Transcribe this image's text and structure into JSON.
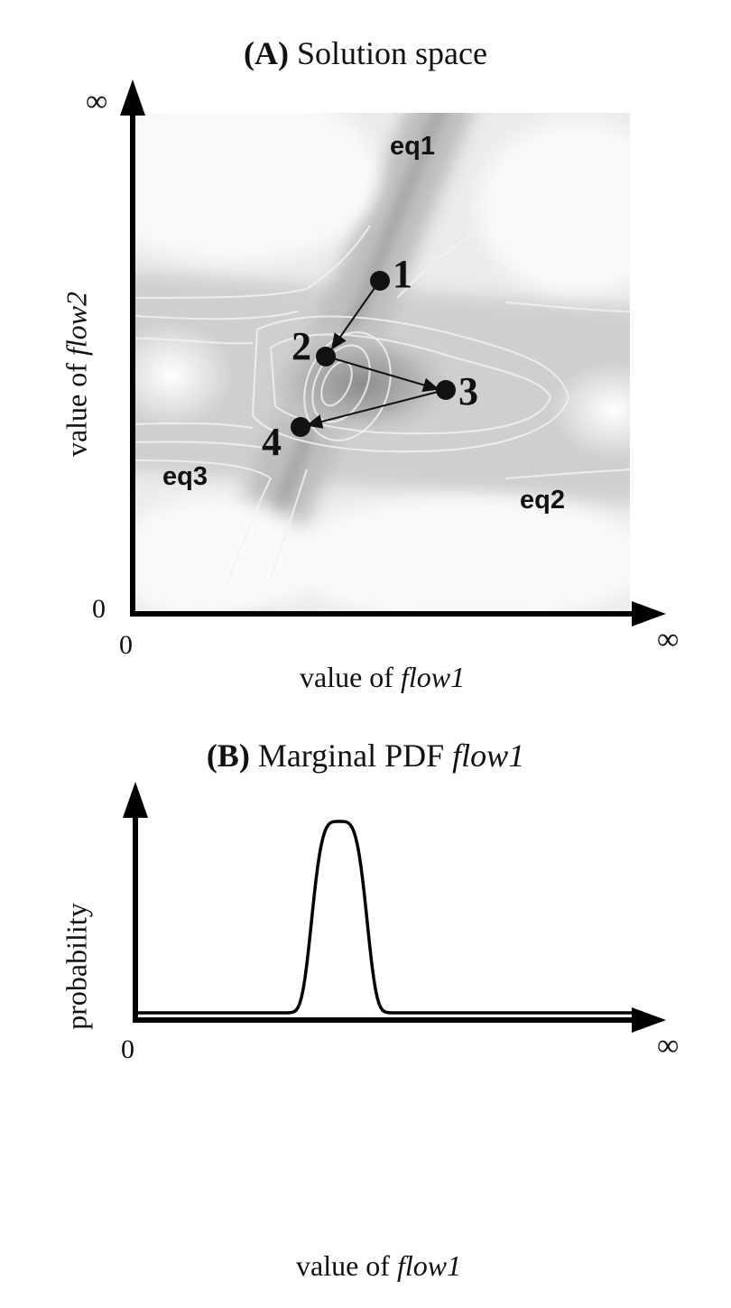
{
  "panel_a": {
    "title_letter": "(A)",
    "title_text": "Solution space",
    "x_axis_label_prefix": "value of ",
    "x_axis_label_var": "flow1",
    "y_axis_label_prefix": "value of ",
    "y_axis_label_var": "flow2",
    "x_origin": "0",
    "y_origin": "0",
    "x_inf": "∞",
    "y_inf": "∞",
    "constraints": [
      "eq1",
      "eq2",
      "eq3"
    ],
    "path_points": [
      "1",
      "2",
      "3",
      "4"
    ]
  },
  "panel_b": {
    "title_letter": "(B)",
    "title_text": "Marginal PDF ",
    "title_var": "flow1",
    "x_axis_label_prefix": "value of ",
    "x_axis_label_var": "flow1",
    "y_axis_label": "probability",
    "x_origin": "0",
    "x_inf": "∞"
  }
}
